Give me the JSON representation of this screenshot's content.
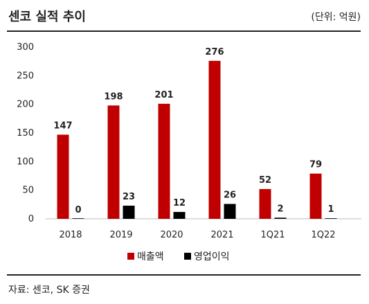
{
  "header": {
    "title": "센코 실적 추이",
    "unit": "(단위: 억원)"
  },
  "footer": {
    "source": "자료: 센코, SK 증권"
  },
  "colors": {
    "sales": "#c00000",
    "operating_profit": "#000000"
  },
  "chart_data": {
    "type": "bar",
    "categories": [
      "2018",
      "2019",
      "2020",
      "2021",
      "1Q21",
      "1Q22"
    ],
    "series": [
      {
        "name": "매출액",
        "values": [
          147,
          198,
          201,
          276,
          52,
          79
        ]
      },
      {
        "name": "영업이익",
        "values": [
          0,
          23,
          12,
          26,
          2,
          1
        ]
      }
    ],
    "ylim": [
      0,
      300
    ],
    "yticks": [
      0,
      50,
      100,
      150,
      200,
      250,
      300
    ],
    "grid": false,
    "legend": "bottom"
  }
}
